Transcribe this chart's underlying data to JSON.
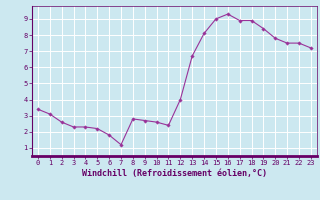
{
  "x": [
    0,
    1,
    2,
    3,
    4,
    5,
    6,
    7,
    8,
    9,
    10,
    11,
    12,
    13,
    14,
    15,
    16,
    17,
    18,
    19,
    20,
    21,
    22,
    23
  ],
  "y": [
    3.4,
    3.1,
    2.6,
    2.3,
    2.3,
    2.2,
    1.8,
    1.2,
    2.8,
    2.7,
    2.6,
    2.4,
    4.0,
    6.7,
    8.1,
    9.0,
    9.3,
    8.9,
    8.9,
    8.4,
    7.8,
    7.5,
    7.5,
    7.2
  ],
  "line_color": "#993399",
  "marker": "D",
  "marker_size": 1.8,
  "line_width": 0.8,
  "xlabel": "Windchill (Refroidissement éolien,°C)",
  "xlim": [
    -0.5,
    23.5
  ],
  "ylim": [
    0.5,
    9.8
  ],
  "xticks": [
    0,
    1,
    2,
    3,
    4,
    5,
    6,
    7,
    8,
    9,
    10,
    11,
    12,
    13,
    14,
    15,
    16,
    17,
    18,
    19,
    20,
    21,
    22,
    23
  ],
  "yticks": [
    1,
    2,
    3,
    4,
    5,
    6,
    7,
    8,
    9
  ],
  "bg_color": "#cce8f0",
  "grid_color": "#ffffff",
  "spine_color": "#660066",
  "tick_color": "#660066",
  "label_color": "#660066",
  "xlabel_fontsize": 6.0,
  "tick_fontsize": 5.0,
  "figsize": [
    3.2,
    2.0
  ],
  "dpi": 100
}
